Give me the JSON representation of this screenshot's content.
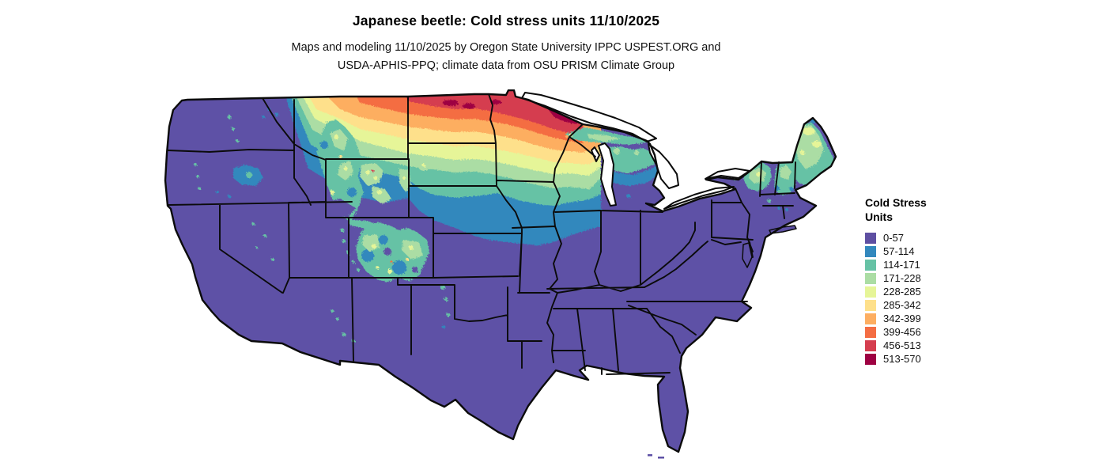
{
  "header": {
    "title": "Japanese beetle: Cold stress units 11/10/2025",
    "subtitle_line1": "Maps and modeling 11/10/2025 by Oregon State University IPPC USPEST.ORG and",
    "subtitle_line2": "USDA-APHIS-PPQ; climate data from OSU PRISM Climate Group"
  },
  "map": {
    "region": "Continental United States",
    "type": "choropleth raster",
    "base_color": "#5e51a6",
    "border_color": "#0b0b0b",
    "water_color": "#ffffff"
  },
  "legend": {
    "title_line1": "Cold Stress",
    "title_line2": "Units",
    "items": [
      {
        "label": "0-57",
        "color": "#5e4fa2"
      },
      {
        "label": "57-114",
        "color": "#3288bd"
      },
      {
        "label": "114-171",
        "color": "#66c2a5"
      },
      {
        "label": "171-228",
        "color": "#abdda4"
      },
      {
        "label": "228-285",
        "color": "#e6f598"
      },
      {
        "label": "285-342",
        "color": "#fee08b"
      },
      {
        "label": "342-399",
        "color": "#fdae61"
      },
      {
        "label": "399-456",
        "color": "#f46d43"
      },
      {
        "label": "456-513",
        "color": "#d53e4f"
      },
      {
        "label": "513-570",
        "color": "#9e0142"
      }
    ]
  }
}
